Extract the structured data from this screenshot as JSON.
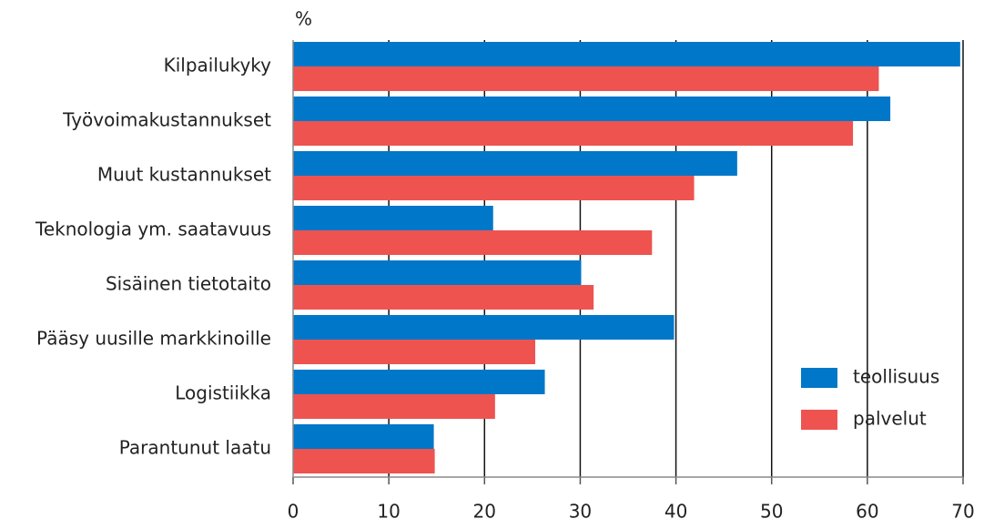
{
  "chart_data": {
    "type": "barh",
    "unit_label": "%",
    "categories": [
      "Kilpailukyky",
      "Työvoimakustannukset",
      "Muut kustannukset",
      "Teknologia ym. saatavuus",
      "Sisäinen tietotaito",
      "Pääsy uusille markkinoille",
      "Logistiikka",
      "Parantunut laatu"
    ],
    "series": [
      {
        "name": "teollisuus",
        "color": "#0077c8",
        "values": [
          69.7,
          62.4,
          46.4,
          20.9,
          30.1,
          39.8,
          26.3,
          14.7
        ]
      },
      {
        "name": "palvelut",
        "color": "#ee5350",
        "values": [
          61.2,
          58.5,
          41.9,
          37.5,
          31.4,
          25.3,
          21.1,
          14.8
        ]
      }
    ],
    "xlim": [
      0,
      70
    ],
    "xticks": [
      0,
      10,
      20,
      30,
      40,
      50,
      60,
      70
    ],
    "grid": true,
    "legend": "lower right"
  }
}
